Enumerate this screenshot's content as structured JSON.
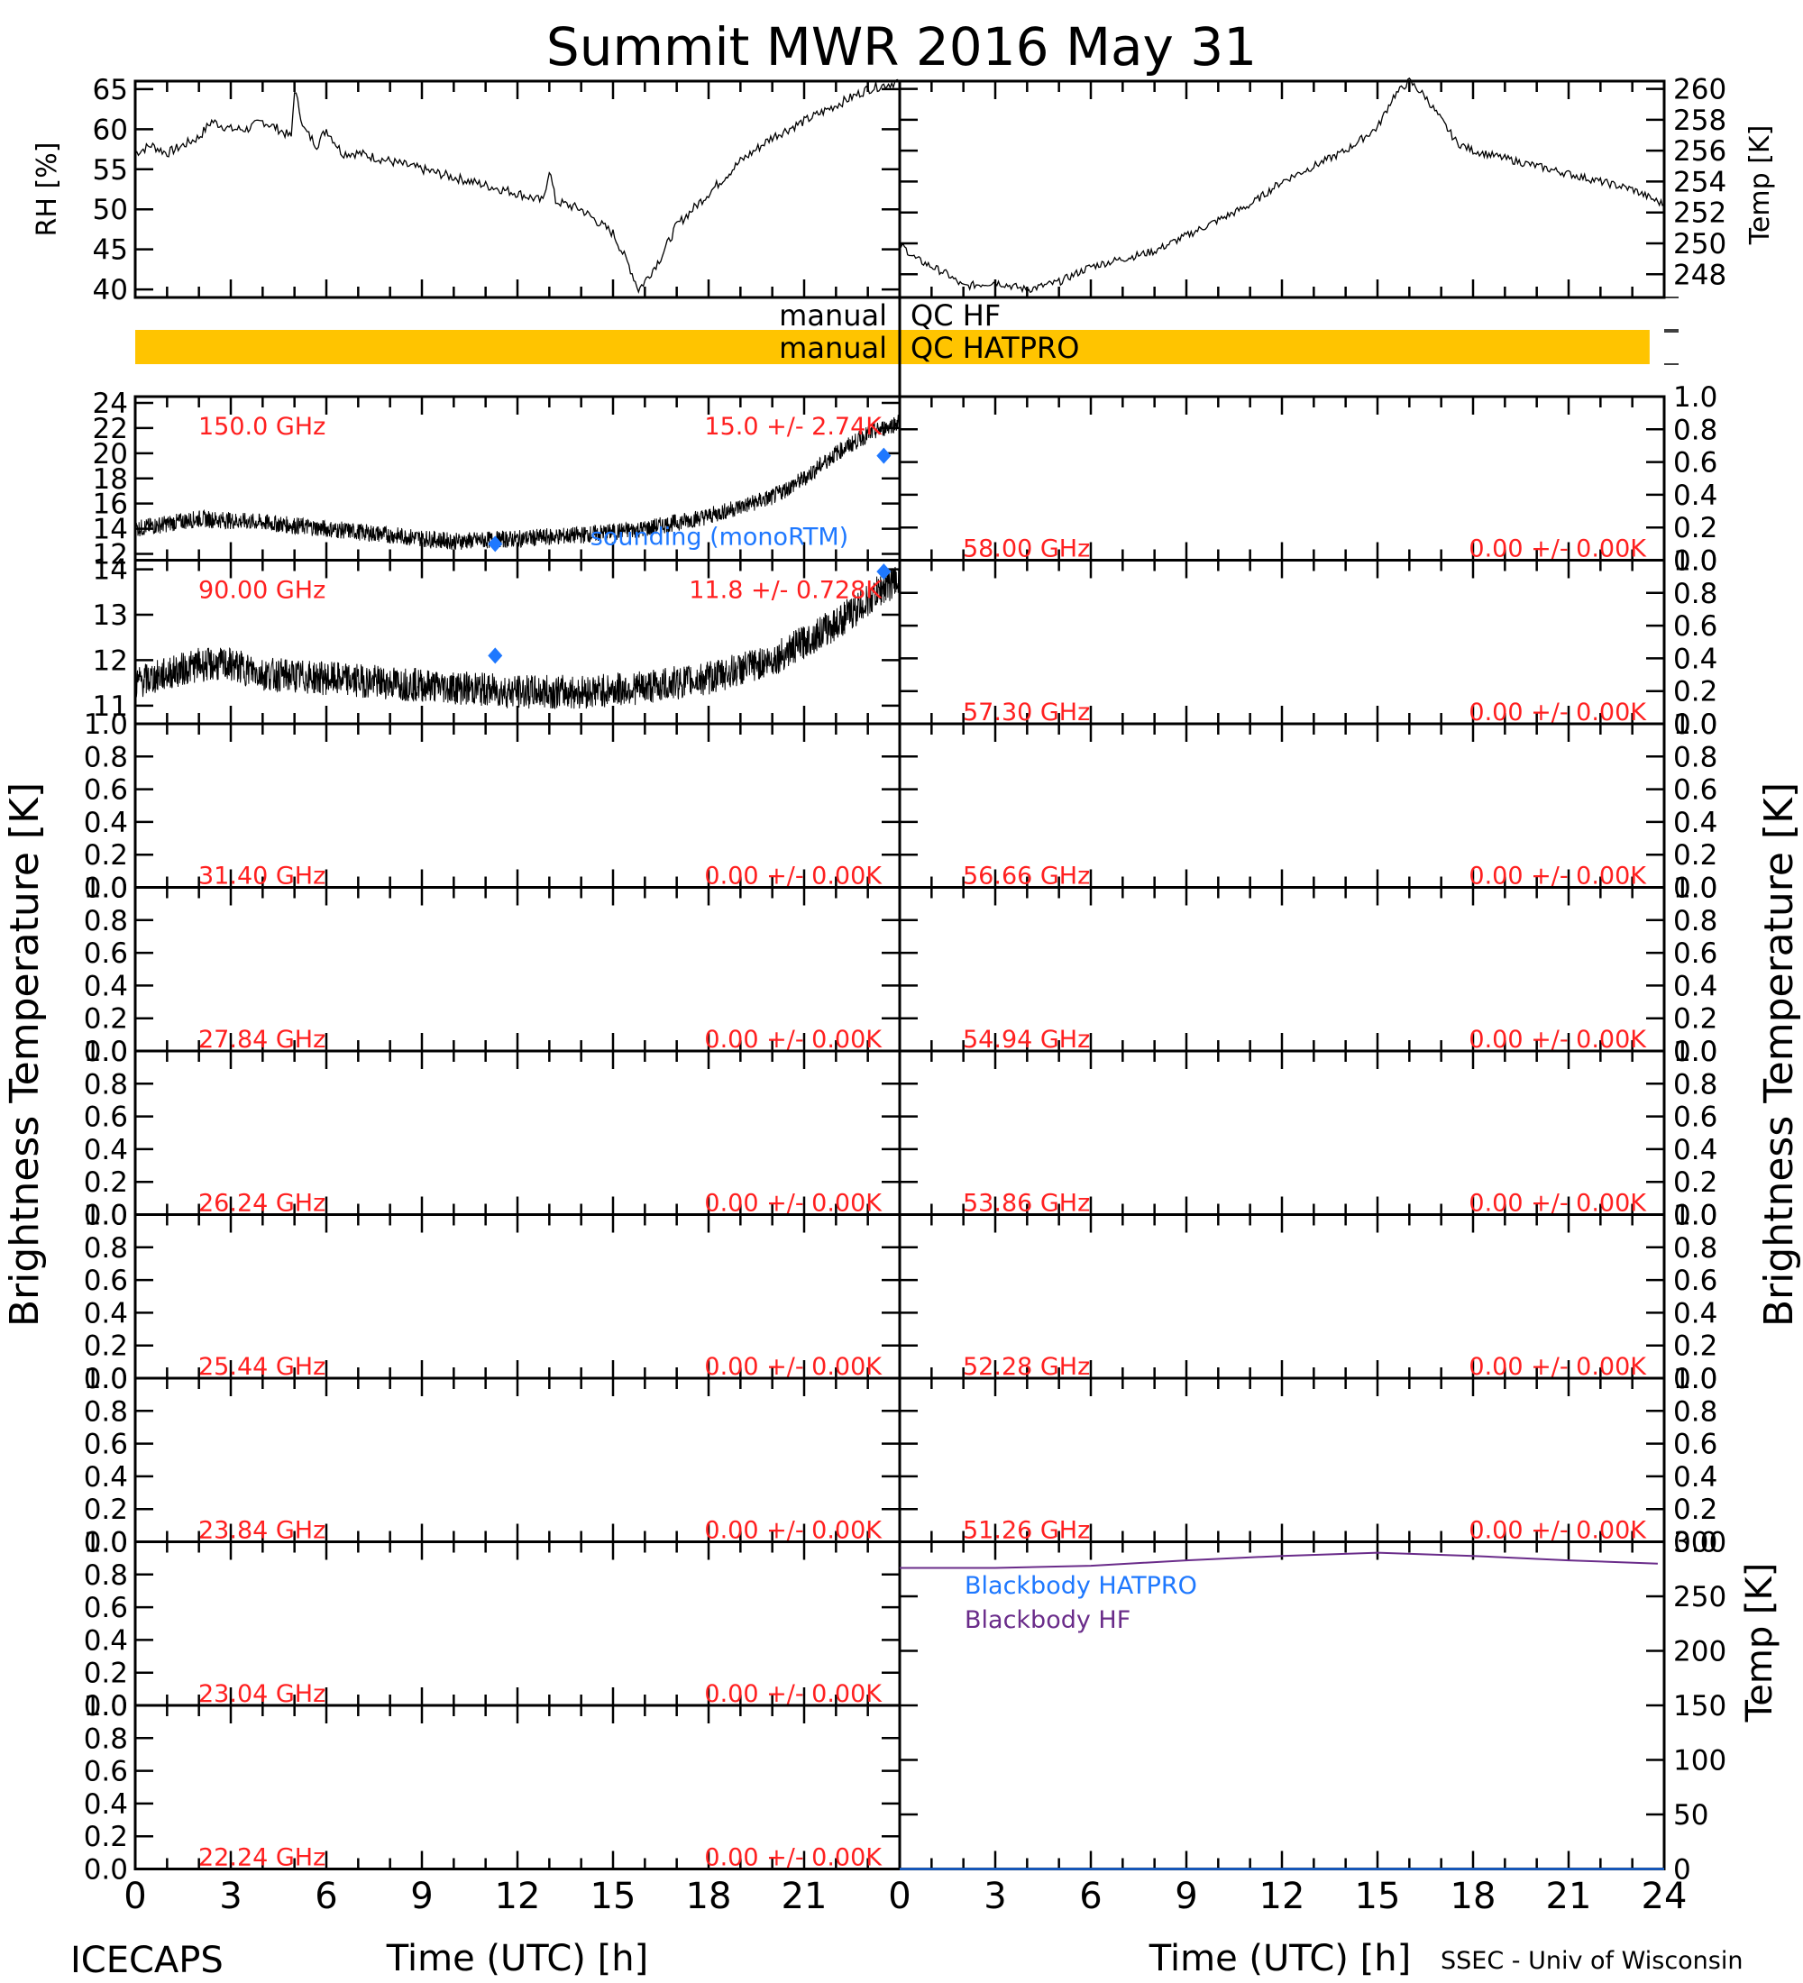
{
  "title": "Summit MWR 2016 May 31",
  "footer_left": "ICECAPS",
  "footer_right": "SSEC - Univ of Wisconsin",
  "colors": {
    "axis": "#000000",
    "label_red": "#ff2020",
    "sounding": "#1e78ff",
    "qc_bar": "#ffc400",
    "bb_hatpro": "#1e78ff",
    "bb_hf": "#6a2c8a"
  },
  "chart_data": [
    {
      "id": "met-rh",
      "type": "line",
      "ylabel": "RH [%]",
      "xlim": [
        0,
        24
      ],
      "ylim": [
        39,
        66
      ],
      "yticks": [
        "40",
        "45",
        "50",
        "55",
        "60",
        "65"
      ],
      "series": [
        {
          "x": [
            0,
            0.5,
            1,
            1.5,
            2,
            2.4,
            3,
            3.5,
            4,
            4.5,
            4.9,
            5,
            5.3,
            5.7,
            6,
            6.5,
            7,
            8,
            9,
            10,
            11,
            12,
            12.8,
            13,
            13.2,
            14,
            15,
            15.5,
            15.8,
            16,
            16.5,
            17,
            18,
            19,
            20,
            21,
            22,
            23,
            24
          ],
          "y": [
            57,
            58,
            57,
            58,
            59,
            61,
            60,
            60,
            61,
            60,
            59,
            65,
            60,
            58,
            60,
            57,
            57,
            56,
            55,
            54,
            53,
            52,
            51,
            55,
            51,
            50,
            47,
            43,
            40,
            41,
            44,
            48,
            52,
            56,
            59,
            61,
            63,
            65,
            66
          ]
        }
      ]
    },
    {
      "id": "met-temp",
      "type": "line",
      "ylabel": "Temp [K]",
      "xlim": [
        0,
        24
      ],
      "ylim": [
        246.5,
        260.5
      ],
      "yticks": [
        "248",
        "250",
        "252",
        "254",
        "256",
        "258",
        "260"
      ],
      "series": [
        {
          "x": [
            0,
            0.5,
            1,
            1.5,
            2,
            3,
            4,
            5,
            6,
            7,
            8,
            9,
            10,
            11,
            12,
            13,
            14,
            15,
            15.5,
            16,
            16.5,
            17,
            17.5,
            18,
            19,
            20,
            21,
            22,
            23,
            24
          ],
          "y": [
            250,
            249,
            248.5,
            248,
            247.2,
            247.5,
            247,
            247.5,
            248.5,
            249,
            249.5,
            250.5,
            251.5,
            252.5,
            254,
            255,
            256,
            257.5,
            259.5,
            260.5,
            259.5,
            258,
            256.5,
            256,
            255.5,
            255,
            254.5,
            254,
            253.5,
            252.5
          ]
        }
      ]
    },
    {
      "id": "qc",
      "type": "bar",
      "rows": [
        {
          "left": "manual",
          "right": "QC HF",
          "bar": false
        },
        {
          "left": "manual",
          "right": "QC HATPRO",
          "bar": true,
          "start": 0,
          "end": 23.8
        }
      ]
    },
    {
      "id": "tb-left",
      "type": "line",
      "ylabel": "Brightness Temperature [K]",
      "xlabel": "Time (UTC) [h]",
      "xlim": [
        0,
        24
      ],
      "xticks": [
        "0",
        "3",
        "6",
        "9",
        "12",
        "15",
        "18",
        "21"
      ],
      "panels": [
        {
          "freq": "150.0 GHz",
          "stat": "15.0 +/- 2.74K",
          "ylim": [
            11.5,
            24.5
          ],
          "yticks": [
            "12",
            "14",
            "16",
            "18",
            "20",
            "22",
            "24"
          ],
          "noise": 0.55,
          "series": [
            {
              "x": [
                0,
                2,
                4,
                6,
                8,
                10,
                12,
                14,
                16,
                18,
                20,
                21,
                22,
                23,
                24
              ],
              "y": [
                14,
                14.8,
                14.5,
                14,
                13.5,
                13,
                13.2,
                13.5,
                14,
                15,
                16.5,
                18,
                20,
                21.5,
                22.5
              ]
            }
          ],
          "sounding": {
            "label": "sounding (monoRTM)",
            "x": [
              11.3,
              23.5
            ],
            "y": [
              12.8,
              19.8
            ]
          }
        },
        {
          "freq": "90.00 GHz",
          "stat": "11.8 +/- 0.728K",
          "ylim": [
            10.6,
            14.2
          ],
          "yticks": [
            "11",
            "12",
            "13",
            "14"
          ],
          "noise": 0.3,
          "series": [
            {
              "x": [
                0,
                1,
                2,
                3,
                4,
                6,
                8,
                10,
                12,
                14,
                16,
                18,
                20,
                21,
                22,
                23,
                23.5,
                24
              ],
              "y": [
                11.5,
                11.7,
                11.9,
                11.9,
                11.7,
                11.6,
                11.5,
                11.4,
                11.3,
                11.3,
                11.4,
                11.6,
                12,
                12.4,
                12.8,
                13.3,
                13.6,
                13.8
              ]
            }
          ],
          "sounding": {
            "x": [
              11.3,
              23.5
            ],
            "y": [
              12.1,
              13.95
            ]
          }
        },
        {
          "freq": "31.40 GHz",
          "stat": "0.00 +/- 0.00K"
        },
        {
          "freq": "27.84 GHz",
          "stat": "0.00 +/- 0.00K"
        },
        {
          "freq": "26.24 GHz",
          "stat": "0.00 +/- 0.00K"
        },
        {
          "freq": "25.44 GHz",
          "stat": "0.00 +/- 0.00K"
        },
        {
          "freq": "23.84 GHz",
          "stat": "0.00 +/- 0.00K"
        },
        {
          "freq": "23.04 GHz",
          "stat": "0.00 +/- 0.00K"
        },
        {
          "freq": "22.24 GHz",
          "stat": "0.00 +/- 0.00K"
        }
      ]
    },
    {
      "id": "tb-right",
      "type": "line",
      "ylabel": "Brightness Temperature [K]",
      "xlabel": "Time (UTC) [h]",
      "xlim": [
        0,
        24
      ],
      "xticks": [
        "0",
        "3",
        "6",
        "9",
        "12",
        "15",
        "18",
        "21",
        "24"
      ],
      "panels": [
        {
          "freq": "58.00 GHz",
          "stat": "0.00 +/- 0.00K"
        },
        {
          "freq": "57.30 GHz",
          "stat": "0.00 +/- 0.00K"
        },
        {
          "freq": "56.66 GHz",
          "stat": "0.00 +/- 0.00K"
        },
        {
          "freq": "54.94 GHz",
          "stat": "0.00 +/- 0.00K"
        },
        {
          "freq": "53.86 GHz",
          "stat": "0.00 +/- 0.00K"
        },
        {
          "freq": "52.28 GHz",
          "stat": "0.00 +/- 0.00K"
        },
        {
          "freq": "51.26 GHz",
          "stat": "0.00 +/- 0.00K"
        }
      ],
      "blackbody": {
        "ylabel": "Temp [K]",
        "ylim": [
          0,
          300
        ],
        "yticks": [
          "0",
          "50",
          "100",
          "150",
          "200",
          "250",
          "300"
        ],
        "series": [
          {
            "name": "Blackbody HATPRO",
            "x": [
              0,
              24
            ],
            "y": [
              0,
              0
            ]
          },
          {
            "name": "Blackbody HF",
            "x": [
              0,
              3,
              6,
              9,
              12,
              15,
              18,
              21,
              23.8
            ],
            "y": [
              276,
              276,
              278,
              283,
              287,
              290,
              287,
              283,
              280
            ]
          }
        ]
      }
    }
  ],
  "empty_panel": {
    "ylim": [
      0,
      1
    ],
    "yticks": [
      "0.0",
      "0.2",
      "0.4",
      "0.6",
      "0.8",
      "1.0"
    ]
  }
}
